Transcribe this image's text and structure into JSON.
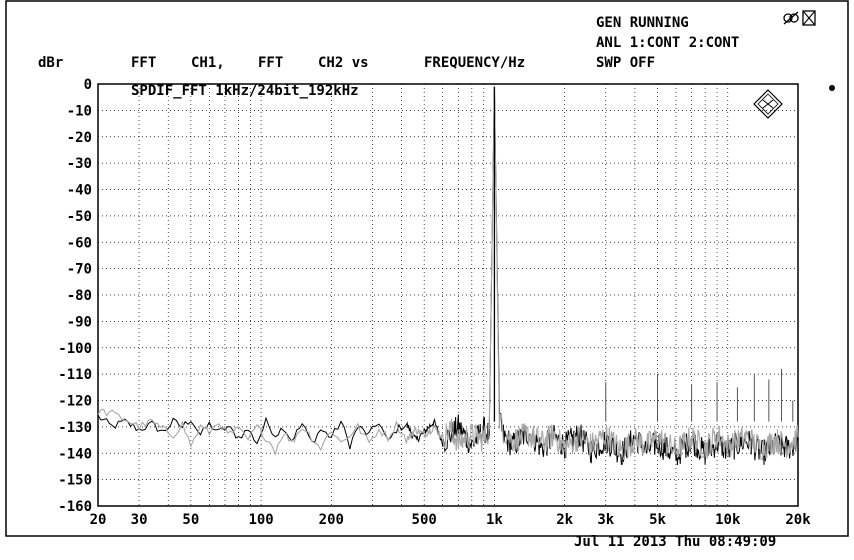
{
  "status": {
    "gen": "GEN RUNNING",
    "anl": "ANL 1:CONT 2:CONT",
    "swp": "SWP OFF",
    "timestamp": "Jul 11 2013 Thu 08:49:09"
  },
  "chart_data": {
    "type": "line",
    "title": "SPDIF_FFT 1kHz/24bit_192kHz",
    "header": [
      "FFT",
      "CH1,",
      "FFT",
      "CH2 vs",
      "FREQUENCY/Hz"
    ],
    "ylabel": "dBr",
    "xlabel": "",
    "x_scale": "log",
    "xlim": [
      20,
      20000
    ],
    "ylim": [
      -160,
      0
    ],
    "grid": true,
    "xticks": [
      {
        "value": 20,
        "label": "20"
      },
      {
        "value": 30,
        "label": "30"
      },
      {
        "value": 50,
        "label": "50"
      },
      {
        "value": 100,
        "label": "100"
      },
      {
        "value": 200,
        "label": "200"
      },
      {
        "value": 500,
        "label": "500"
      },
      {
        "value": 1000,
        "label": "1k"
      },
      {
        "value": 2000,
        "label": "2k"
      },
      {
        "value": 3000,
        "label": "3k"
      },
      {
        "value": 5000,
        "label": "5k"
      },
      {
        "value": 10000,
        "label": "10k"
      },
      {
        "value": 20000,
        "label": "20k"
      }
    ],
    "yticks": [
      0,
      -10,
      -20,
      -30,
      -40,
      -50,
      -60,
      -70,
      -80,
      -90,
      -100,
      -110,
      -120,
      -130,
      -140,
      -150,
      -160
    ],
    "series": [
      {
        "color": "#000000",
        "x": [
          20,
          23,
          26,
          30,
          34,
          38,
          42,
          46,
          50,
          55,
          60,
          66,
          72,
          80,
          88,
          96,
          105,
          115,
          125,
          135,
          150,
          165,
          180,
          200,
          220,
          240,
          260,
          290,
          320,
          350,
          380,
          420,
          460,
          500,
          550,
          600,
          650,
          700,
          800,
          900,
          950,
          1000,
          1050,
          1100,
          1200,
          1400,
          1600,
          1800,
          2000,
          2300,
          2600,
          3000,
          3500,
          4000,
          4500,
          5000,
          6000,
          7000,
          8000,
          9000,
          10000,
          12000,
          14000,
          16000,
          18000,
          20000
        ],
        "y": [
          -126,
          -130,
          -128,
          -131,
          -129,
          -132,
          -128,
          -130,
          -127,
          -133,
          -129,
          -132,
          -130,
          -134,
          -131,
          -136,
          -128,
          -133,
          -130,
          -135,
          -129,
          -136,
          -131,
          -134,
          -128,
          -137,
          -130,
          -133,
          -128,
          -136,
          -131,
          -129,
          -135,
          -132,
          -128,
          -136,
          -133,
          -130,
          -137,
          -131,
          -133,
          -1,
          -128,
          -134,
          -137,
          -132,
          -138,
          -134,
          -137,
          -133,
          -139,
          -135,
          -140,
          -134,
          -139,
          -136,
          -141,
          -135,
          -140,
          -136,
          -139,
          -135,
          -140,
          -137,
          -138,
          -136
        ]
      },
      {
        "color": "#a8a8a8",
        "x": [
          20,
          23,
          26,
          30,
          34,
          38,
          42,
          46,
          50,
          55,
          60,
          66,
          72,
          80,
          88,
          96,
          105,
          115,
          125,
          135,
          150,
          165,
          180,
          200,
          220,
          240,
          260,
          290,
          320,
          350,
          380,
          420,
          460,
          500,
          550,
          600,
          650,
          700,
          800,
          900,
          950,
          1000,
          1050,
          1100,
          1200,
          1400,
          1600,
          1800,
          2000,
          2300,
          2600,
          3000,
          3500,
          4000,
          4500,
          5000,
          6000,
          7000,
          8000,
          9000,
          10000,
          12000,
          14000,
          16000,
          18000,
          20000
        ],
        "y": [
          -124,
          -125,
          -127,
          -130,
          -128,
          -131,
          -133,
          -129,
          -137,
          -130,
          -132,
          -128,
          -133,
          -131,
          -135,
          -130,
          -134,
          -139,
          -132,
          -136,
          -130,
          -134,
          -138,
          -131,
          -136,
          -133,
          -130,
          -136,
          -131,
          -134,
          -129,
          -135,
          -131,
          -133,
          -130,
          -134,
          -131,
          -136,
          -133,
          -135,
          -131,
          -1,
          -127,
          -132,
          -135,
          -133,
          -136,
          -133,
          -138,
          -134,
          -137,
          -133,
          -139,
          -135,
          -137,
          -134,
          -139,
          -134,
          -138,
          -133,
          -137,
          -134,
          -138,
          -135,
          -137,
          -134
        ]
      }
    ],
    "spikes": [
      {
        "x": 1000,
        "y": -1
      },
      {
        "x": 3000,
        "y": -113
      },
      {
        "x": 5000,
        "y": -110
      },
      {
        "x": 7000,
        "y": -114
      },
      {
        "x": 9000,
        "y": -113
      },
      {
        "x": 11000,
        "y": -115
      },
      {
        "x": 13000,
        "y": -110
      },
      {
        "x": 15000,
        "y": -112
      },
      {
        "x": 17000,
        "y": -108
      },
      {
        "x": 19000,
        "y": -120
      }
    ]
  }
}
